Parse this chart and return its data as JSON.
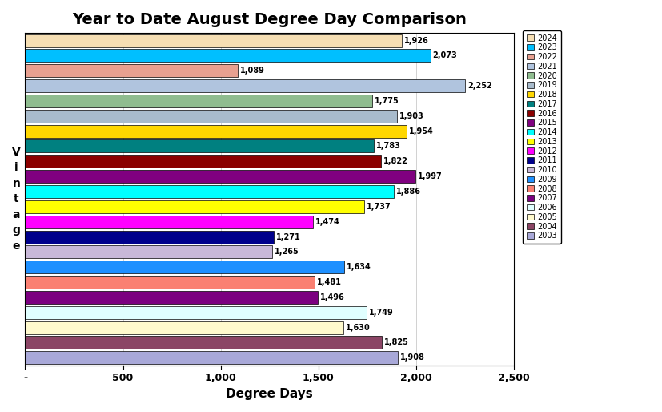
{
  "title": "Year to Date August Degree Day Comparison",
  "xlabel": "Degree Days",
  "ylabel": "V\ni\nn\nt\na\ng\ne",
  "years": [
    2024,
    2023,
    2022,
    2021,
    2020,
    2019,
    2018,
    2017,
    2016,
    2015,
    2014,
    2013,
    2012,
    2011,
    2010,
    2009,
    2008,
    2007,
    2006,
    2005,
    2004,
    2003
  ],
  "values": [
    1926,
    2073,
    1089,
    2252,
    1775,
    1903,
    1954,
    1783,
    1822,
    1997,
    1886,
    1737,
    1474,
    1271,
    1265,
    1634,
    1481,
    1496,
    1749,
    1630,
    1825,
    1908
  ],
  "colors": [
    "#F5DEB3",
    "#00BFFF",
    "#E8A090",
    "#B0C4DE",
    "#8FBC8F",
    "#A8BBCC",
    "#FFD700",
    "#008080",
    "#8B0000",
    "#800080",
    "#00FFFF",
    "#FFFF00",
    "#FF00FF",
    "#00008B",
    "#C8B8D8",
    "#1E90FF",
    "#FA8072",
    "#7B0080",
    "#E0FFFF",
    "#FFFACD",
    "#8B4565",
    "#A8A8D8"
  ],
  "xlim": [
    0,
    2500
  ],
  "xticks": [
    0,
    500,
    1000,
    1500,
    2000,
    2500
  ],
  "xticklabels": [
    "-",
    "500",
    "1,000",
    "1,500",
    "2,000",
    "2,500"
  ],
  "background_color": "#FFFFFF",
  "plot_background": "#FFFFFF",
  "title_fontsize": 14,
  "bar_height": 0.85,
  "label_fontsize": 7,
  "figwidth": 8.28,
  "figheight": 5.14,
  "dpi": 100
}
